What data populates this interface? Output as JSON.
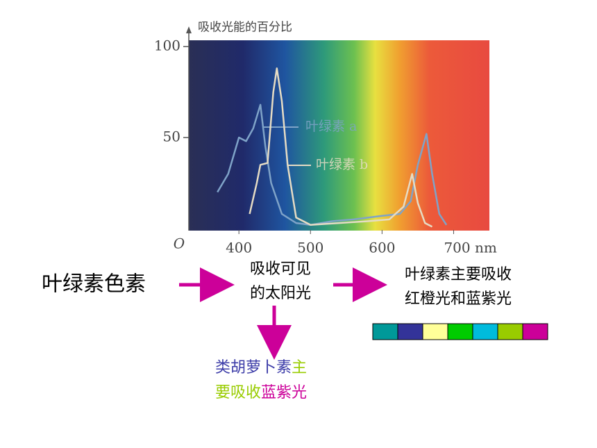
{
  "chart_data": {
    "type": "line",
    "y_axis_label": "吸收光能的百分比",
    "origin_label": "O",
    "xlim": [
      330,
      750
    ],
    "ylim": [
      0,
      100
    ],
    "xticks": [
      400,
      500,
      600,
      {
        "value": 700,
        "label": "700 nm"
      }
    ],
    "yticks": [
      50,
      100
    ],
    "series": [
      {
        "name": "叶绿素 a",
        "color": "#7fa3c8",
        "x": [
          370,
          385,
          400,
          410,
          420,
          430,
          437,
          445,
          460,
          480,
          500,
          530,
          560,
          600,
          625,
          640,
          650,
          662,
          670,
          680,
          690
        ],
        "values": [
          20,
          30,
          50,
          48,
          55,
          68,
          45,
          25,
          8,
          3,
          2,
          4,
          5,
          7,
          8,
          15,
          35,
          52,
          30,
          8,
          2
        ]
      },
      {
        "name": "叶绿素 b",
        "color": "#e6dcc4",
        "x": [
          415,
          425,
          430,
          440,
          448,
          453,
          460,
          468,
          480,
          500,
          540,
          580,
          610,
          630,
          642,
          650,
          660,
          670
        ],
        "values": [
          8,
          25,
          35,
          36,
          75,
          88,
          70,
          35,
          6,
          2,
          3,
          4,
          5,
          12,
          30,
          14,
          3,
          1
        ]
      }
    ]
  },
  "slide": {
    "pigment": "叶绿素色素",
    "step1_lines": [
      "吸收可见",
      "的太阳光"
    ],
    "step2_lines": [
      "叶绿素主要吸收",
      "红橙光和蓝紫光"
    ],
    "carotenoid_lines": [
      [
        {
          "text": "类胡萝卜素",
          "color": "#3c3ca8"
        },
        {
          "text": "主",
          "color": "#99cc00"
        }
      ],
      [
        {
          "text": "要吸收",
          "color": "#99cc00"
        },
        {
          "text": "蓝紫光",
          "color": "#cc0099"
        }
      ]
    ],
    "color_strip": [
      "#009999",
      "#333399",
      "#ffff99",
      "#00cc00",
      "#00bbdd",
      "#99cc00",
      "#cc0099"
    ]
  }
}
